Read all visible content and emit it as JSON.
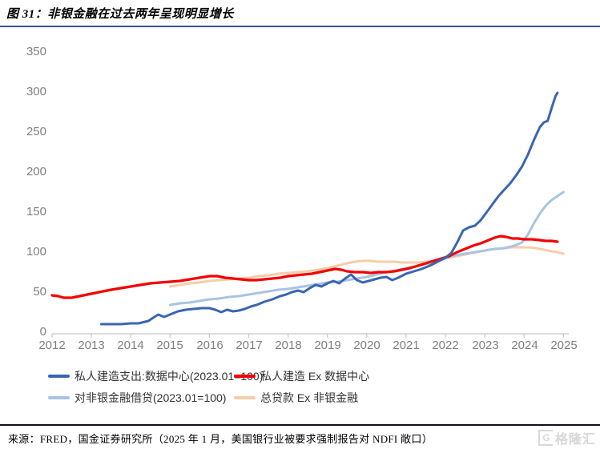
{
  "header": {
    "title": "图 31：非银金融在过去两年呈现明显增长",
    "accent_color": "#2F5597"
  },
  "chart": {
    "y_ticks": [
      "350",
      "300",
      "250",
      "200",
      "150",
      "100",
      "50",
      "0"
    ],
    "x_ticks": [
      "2012",
      "2013",
      "2014",
      "2015",
      "2016",
      "2017",
      "2018",
      "2019",
      "2020",
      "2021",
      "2022",
      "2023",
      "2024",
      "2025"
    ]
  },
  "chart_data": {
    "type": "line",
    "title": "非银金融在过去两年呈现明显增长",
    "xlabel": "",
    "ylabel": "",
    "xlim": [
      2012,
      2025.3
    ],
    "ylim": [
      0,
      350
    ],
    "grid": false,
    "legend_position": "bottom",
    "x_tick_labels": [
      2012,
      2013,
      2014,
      2015,
      2016,
      2017,
      2018,
      2019,
      2020,
      2021,
      2022,
      2023,
      2024,
      2025
    ],
    "y_tick_labels": [
      0,
      50,
      100,
      150,
      200,
      250,
      300,
      350
    ],
    "series": [
      {
        "name": "私人建造支出:数据中心(2023.01=100)",
        "color": "#3A66B0",
        "width": 3,
        "points": [
          [
            2013.25,
            10
          ],
          [
            2013.5,
            10
          ],
          [
            2013.75,
            10
          ],
          [
            2014,
            11
          ],
          [
            2014.2,
            11
          ],
          [
            2014.45,
            14
          ],
          [
            2014.6,
            19
          ],
          [
            2014.7,
            22
          ],
          [
            2014.85,
            19
          ],
          [
            2015,
            22
          ],
          [
            2015.2,
            26
          ],
          [
            2015.4,
            28
          ],
          [
            2015.6,
            29
          ],
          [
            2015.8,
            30
          ],
          [
            2016,
            30
          ],
          [
            2016.15,
            28
          ],
          [
            2016.3,
            25
          ],
          [
            2016.45,
            28
          ],
          [
            2016.6,
            26
          ],
          [
            2016.75,
            27
          ],
          [
            2016.9,
            29
          ],
          [
            2017.05,
            32
          ],
          [
            2017.2,
            34
          ],
          [
            2017.4,
            38
          ],
          [
            2017.6,
            41
          ],
          [
            2017.8,
            45
          ],
          [
            2017.95,
            47
          ],
          [
            2018.1,
            50
          ],
          [
            2018.25,
            52
          ],
          [
            2018.4,
            50
          ],
          [
            2018.55,
            55
          ],
          [
            2018.7,
            59
          ],
          [
            2018.85,
            57
          ],
          [
            2019,
            61
          ],
          [
            2019.15,
            64
          ],
          [
            2019.3,
            61
          ],
          [
            2019.45,
            67
          ],
          [
            2019.6,
            72
          ],
          [
            2019.75,
            65
          ],
          [
            2019.9,
            62
          ],
          [
            2020.05,
            64
          ],
          [
            2020.2,
            66
          ],
          [
            2020.35,
            68
          ],
          [
            2020.5,
            69
          ],
          [
            2020.65,
            65
          ],
          [
            2020.8,
            68
          ],
          [
            2021,
            73
          ],
          [
            2021.2,
            76
          ],
          [
            2021.4,
            79
          ],
          [
            2021.6,
            83
          ],
          [
            2021.8,
            88
          ],
          [
            2022,
            93
          ],
          [
            2022.15,
            99
          ],
          [
            2022.3,
            112
          ],
          [
            2022.45,
            127
          ],
          [
            2022.6,
            131
          ],
          [
            2022.75,
            133
          ],
          [
            2022.9,
            140
          ],
          [
            2023.05,
            150
          ],
          [
            2023.2,
            160
          ],
          [
            2023.35,
            170
          ],
          [
            2023.5,
            178
          ],
          [
            2023.65,
            186
          ],
          [
            2023.8,
            196
          ],
          [
            2023.95,
            207
          ],
          [
            2024.1,
            222
          ],
          [
            2024.25,
            240
          ],
          [
            2024.4,
            256
          ],
          [
            2024.5,
            262
          ],
          [
            2024.6,
            264
          ],
          [
            2024.7,
            280
          ],
          [
            2024.8,
            295
          ],
          [
            2024.85,
            299
          ]
        ]
      },
      {
        "name": "私人建造 Ex 数据中心",
        "color": "#F40000",
        "width": 3.2,
        "points": [
          [
            2012,
            46
          ],
          [
            2012.15,
            45
          ],
          [
            2012.3,
            43
          ],
          [
            2012.5,
            43
          ],
          [
            2012.7,
            45
          ],
          [
            2012.9,
            47
          ],
          [
            2013.1,
            49
          ],
          [
            2013.3,
            51
          ],
          [
            2013.5,
            53
          ],
          [
            2013.75,
            55
          ],
          [
            2014,
            57
          ],
          [
            2014.25,
            59
          ],
          [
            2014.5,
            61
          ],
          [
            2014.75,
            62
          ],
          [
            2015,
            63
          ],
          [
            2015.25,
            64
          ],
          [
            2015.5,
            66
          ],
          [
            2015.75,
            68
          ],
          [
            2016,
            70
          ],
          [
            2016.2,
            70
          ],
          [
            2016.4,
            68
          ],
          [
            2016.6,
            67
          ],
          [
            2016.8,
            66
          ],
          [
            2017,
            65
          ],
          [
            2017.2,
            65
          ],
          [
            2017.4,
            66
          ],
          [
            2017.6,
            67
          ],
          [
            2017.8,
            68
          ],
          [
            2018,
            70
          ],
          [
            2018.2,
            71
          ],
          [
            2018.4,
            72
          ],
          [
            2018.6,
            73
          ],
          [
            2018.8,
            75
          ],
          [
            2019,
            77
          ],
          [
            2019.2,
            79
          ],
          [
            2019.35,
            78
          ],
          [
            2019.5,
            76
          ],
          [
            2019.7,
            75
          ],
          [
            2019.9,
            75
          ],
          [
            2020.1,
            74
          ],
          [
            2020.3,
            75
          ],
          [
            2020.5,
            75
          ],
          [
            2020.7,
            76
          ],
          [
            2020.9,
            78
          ],
          [
            2021.1,
            80
          ],
          [
            2021.3,
            83
          ],
          [
            2021.5,
            86
          ],
          [
            2021.7,
            89
          ],
          [
            2021.9,
            92
          ],
          [
            2022.1,
            95
          ],
          [
            2022.3,
            100
          ],
          [
            2022.5,
            104
          ],
          [
            2022.7,
            108
          ],
          [
            2022.9,
            111
          ],
          [
            2023.1,
            115
          ],
          [
            2023.25,
            118
          ],
          [
            2023.4,
            120
          ],
          [
            2023.55,
            119
          ],
          [
            2023.7,
            117
          ],
          [
            2023.85,
            117
          ],
          [
            2024,
            116
          ],
          [
            2024.2,
            116
          ],
          [
            2024.4,
            115
          ],
          [
            2024.55,
            114
          ],
          [
            2024.7,
            114
          ],
          [
            2024.85,
            113
          ]
        ]
      },
      {
        "name": "对非银金融借贷(2023.01=100)",
        "color": "#A9C3E6",
        "width": 3,
        "points": [
          [
            2015,
            34
          ],
          [
            2015.25,
            36
          ],
          [
            2015.5,
            37
          ],
          [
            2015.75,
            39
          ],
          [
            2016,
            41
          ],
          [
            2016.25,
            42
          ],
          [
            2016.5,
            44
          ],
          [
            2016.75,
            45
          ],
          [
            2017,
            47
          ],
          [
            2017.25,
            49
          ],
          [
            2017.5,
            51
          ],
          [
            2017.75,
            53
          ],
          [
            2018,
            54
          ],
          [
            2018.25,
            56
          ],
          [
            2018.5,
            58
          ],
          [
            2018.75,
            60
          ],
          [
            2019,
            62
          ],
          [
            2019.25,
            63
          ],
          [
            2019.5,
            65
          ],
          [
            2019.75,
            67
          ],
          [
            2020,
            69
          ],
          [
            2020.25,
            72
          ],
          [
            2020.5,
            75
          ],
          [
            2020.75,
            77
          ],
          [
            2021,
            80
          ],
          [
            2021.25,
            82
          ],
          [
            2021.5,
            85
          ],
          [
            2021.75,
            88
          ],
          [
            2022,
            92
          ],
          [
            2022.25,
            96
          ],
          [
            2022.5,
            98
          ],
          [
            2022.75,
            100
          ],
          [
            2023,
            102
          ],
          [
            2023.25,
            104
          ],
          [
            2023.5,
            105
          ],
          [
            2023.75,
            108
          ],
          [
            2023.95,
            112
          ],
          [
            2024.1,
            122
          ],
          [
            2024.25,
            136
          ],
          [
            2024.4,
            148
          ],
          [
            2024.55,
            158
          ],
          [
            2024.7,
            165
          ],
          [
            2024.85,
            170
          ],
          [
            2025,
            175
          ]
        ]
      },
      {
        "name": "总贷款 Ex 非银金融",
        "color": "#F6CDAA",
        "width": 3,
        "points": [
          [
            2015,
            57
          ],
          [
            2015.25,
            59
          ],
          [
            2015.5,
            61
          ],
          [
            2015.75,
            62
          ],
          [
            2016,
            64
          ],
          [
            2016.25,
            65
          ],
          [
            2016.5,
            66
          ],
          [
            2016.75,
            67
          ],
          [
            2017,
            68
          ],
          [
            2017.25,
            70
          ],
          [
            2017.5,
            71
          ],
          [
            2017.75,
            73
          ],
          [
            2018,
            74
          ],
          [
            2018.25,
            75
          ],
          [
            2018.5,
            76
          ],
          [
            2018.75,
            78
          ],
          [
            2019,
            80
          ],
          [
            2019.25,
            83
          ],
          [
            2019.5,
            86
          ],
          [
            2019.7,
            88
          ],
          [
            2019.9,
            89
          ],
          [
            2020.1,
            89
          ],
          [
            2020.3,
            88
          ],
          [
            2020.5,
            88
          ],
          [
            2020.7,
            88
          ],
          [
            2020.9,
            87
          ],
          [
            2021.1,
            87
          ],
          [
            2021.3,
            87
          ],
          [
            2021.5,
            88
          ],
          [
            2021.7,
            89
          ],
          [
            2021.9,
            91
          ],
          [
            2022.1,
            93
          ],
          [
            2022.3,
            95
          ],
          [
            2022.5,
            97
          ],
          [
            2022.7,
            99
          ],
          [
            2022.9,
            101
          ],
          [
            2023.1,
            103
          ],
          [
            2023.3,
            104
          ],
          [
            2023.5,
            105
          ],
          [
            2023.7,
            106
          ],
          [
            2023.9,
            106
          ],
          [
            2024.1,
            106
          ],
          [
            2024.3,
            105
          ],
          [
            2024.5,
            103
          ],
          [
            2024.7,
            101
          ],
          [
            2024.85,
            100
          ],
          [
            2025,
            98
          ]
        ]
      }
    ]
  },
  "footer": {
    "source": "来源：FRED，国金证券研究所（2025 年 1 月，美国银行业被要求强制报告对 NDFI 敞口）",
    "watermark_icon": "G",
    "watermark_text": "格隆汇"
  }
}
